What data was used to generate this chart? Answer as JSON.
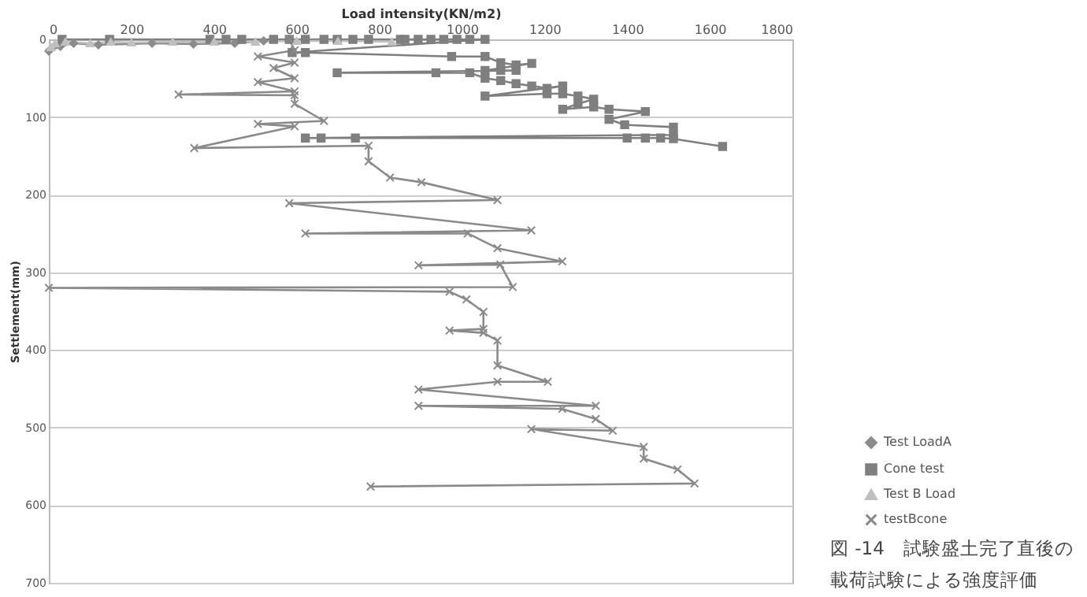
{
  "chart_data": {
    "type": "line",
    "xlabel": "Load intensity(KN/m2)",
    "ylabel": "Settlement(mm)",
    "xlim": [
      0,
      1800
    ],
    "xticks": [
      0,
      200,
      400,
      600,
      800,
      1000,
      1200,
      1400,
      1600,
      1800
    ],
    "ylim": [
      700,
      0
    ],
    "yticks": [
      0,
      100,
      200,
      300,
      400,
      500,
      600,
      700
    ],
    "grid": "y",
    "legend": "right",
    "annotations": [
      "図 -14　試験盛土完了直後の載荷試験による強度評価"
    ],
    "series": [
      {
        "name": "Test LoadA",
        "color": "#8c8c8c",
        "marker": "diamond",
        "x": [
          0,
          28,
          60,
          120,
          250,
          350,
          450,
          520
        ],
        "values": [
          15,
          9,
          5,
          7,
          5,
          6,
          5,
          2
        ]
      },
      {
        "name": "Cone test",
        "color": "#7f7f7f",
        "marker": "square",
        "x": [
          32,
          147,
          390,
          429,
          467,
          544,
          582,
          621,
          666,
          698,
          736,
          774,
          851,
          862,
          894,
          925,
          956,
          988,
          1019,
          1056,
          589,
          621,
          975,
          1056,
          1094,
          1131,
          1169,
          1056,
          1094,
          1131,
          698,
          937,
          1019,
          1056,
          1094,
          1131,
          1169,
          1206,
          1244,
          1056,
          1206,
          1244,
          1281,
          1319,
          1281,
          1244,
          1319,
          1356,
          1444,
          1356,
          1394,
          1512,
          1512,
          621,
          659,
          742,
          1400,
          1444,
          1481,
          1512,
          1631
        ],
        "values": [
          0,
          0,
          0,
          0,
          0,
          0,
          0,
          0,
          0,
          0,
          0,
          0,
          0,
          0,
          0,
          0,
          0,
          0,
          0,
          0,
          17,
          17,
          22,
          22,
          30,
          33,
          31,
          40,
          40,
          40,
          43,
          43,
          43,
          50,
          53,
          57,
          60,
          63,
          60,
          73,
          70,
          70,
          73,
          77,
          83,
          90,
          87,
          90,
          93,
          103,
          110,
          113,
          123,
          127,
          127,
          127,
          127,
          127,
          127,
          128,
          138
        ]
      },
      {
        "name": "Test B Load",
        "color": "#c0c0c0",
        "marker": "triangle",
        "x": [
          5,
          15,
          40,
          100,
          150,
          200,
          300,
          400,
          500,
          600,
          700,
          830
        ],
        "values": [
          10,
          5,
          3,
          5,
          3,
          4,
          3,
          3,
          3,
          2,
          2,
          3
        ]
      },
      {
        "name": "testBcone",
        "color": "#8a8a8a",
        "marker": "cross",
        "x": [
          582,
          595,
          506,
          595,
          544,
          595,
          506,
          595,
          314,
          595,
          595,
          666,
          506,
          595,
          352,
          774,
          774,
          826,
          902,
          1086,
          582,
          1168,
          621,
          1014,
          1086,
          1243,
          895,
          1093,
          1123,
          0,
          970,
          1011,
          1052,
          1052,
          970,
          1052,
          1086,
          1086,
          1208,
          1086,
          895,
          1324,
          895,
          1243,
          1324,
          1365,
          1168,
          1440,
          1440,
          1522,
          1563,
          779
        ],
        "values": [
          0,
          14,
          22,
          30,
          37,
          50,
          55,
          67,
          71,
          72,
          83,
          105,
          109,
          112,
          140,
          137,
          157,
          178,
          184,
          207,
          211,
          246,
          250,
          250,
          269,
          286,
          291,
          290,
          319,
          320,
          325,
          335,
          351,
          373,
          375,
          378,
          388,
          420,
          441,
          441,
          451,
          472,
          472,
          476,
          489,
          504,
          502,
          525,
          540,
          554,
          572,
          576
        ]
      }
    ]
  }
}
